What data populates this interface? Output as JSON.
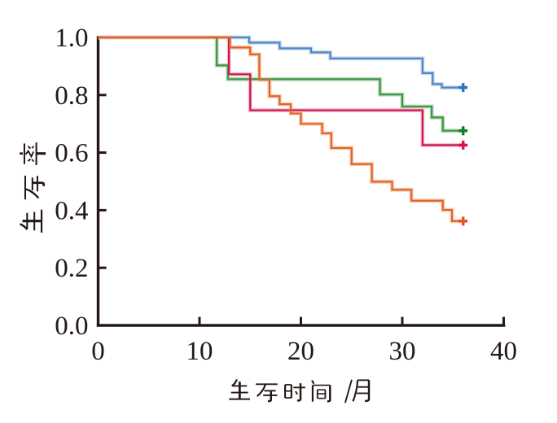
{
  "figure": {
    "kind": "kaplan-meier-survival-plot",
    "background": "#ffffff",
    "axis_color": "#231815",
    "x_axis": {
      "label": "生存时间/月",
      "tick_labels": [
        "0",
        "10",
        "20",
        "30",
        "40"
      ],
      "range": [
        0,
        40
      ]
    },
    "y_axis": {
      "label": "生存率",
      "tick_labels": [
        "1.0",
        "0.8",
        "0.6",
        "0.4",
        "0.2",
        "0.0"
      ],
      "range": [
        0.0,
        1.0
      ]
    }
  },
  "chart_data": {
    "type": "line",
    "subtype": "kaplan-meier-step",
    "title": "",
    "xlabel": "生存时间/月",
    "ylabel": "生存率",
    "xlim": [
      0,
      40
    ],
    "ylim": [
      0.0,
      1.0
    ],
    "x_ticks": [
      0,
      10,
      20,
      30,
      40
    ],
    "y_ticks": [
      1.0,
      0.8,
      0.6,
      0.4,
      0.2,
      0.0
    ],
    "grid": false,
    "legend": "none",
    "series": [
      {
        "name": "curve-blue",
        "color": "#4e86c6",
        "halo_color": "#c9dcf0",
        "censor_color": "#2e73c4",
        "start": [
          0,
          1.0
        ],
        "steps": [
          [
            14.9,
            0.982
          ],
          [
            17.9,
            0.962
          ],
          [
            21.0,
            0.948
          ],
          [
            22.9,
            0.927
          ],
          [
            32.0,
            0.876
          ],
          [
            33.0,
            0.838
          ],
          [
            33.9,
            0.826
          ]
        ],
        "end_time": 36.3,
        "censor_marks": [
          [
            36.0,
            0.826
          ]
        ]
      },
      {
        "name": "curve-green",
        "color": "#3f9447",
        "halo_color": "#bcdcba",
        "censor_color": "#0e7f2e",
        "start": [
          0,
          1.0
        ],
        "steps": [
          [
            11.7,
            0.903
          ],
          [
            12.8,
            0.855
          ],
          [
            27.8,
            0.802
          ],
          [
            30.0,
            0.76
          ],
          [
            32.9,
            0.722
          ],
          [
            34.0,
            0.676
          ]
        ],
        "end_time": 36.3,
        "censor_marks": [
          [
            36.0,
            0.676
          ]
        ]
      },
      {
        "name": "curve-red",
        "color": "#c9174e",
        "halo_color": "#f6bccd",
        "censor_color": "#e0114e",
        "start": [
          0,
          1.0
        ],
        "steps": [
          [
            12.9,
            0.872
          ],
          [
            15.0,
            0.747
          ],
          [
            32.0,
            0.626
          ]
        ],
        "end_time": 36.3,
        "censor_marks": [
          [
            36.0,
            0.626
          ]
        ]
      },
      {
        "name": "curve-orange",
        "color": "#e0622e",
        "halo_color": "#f8cfae",
        "censor_color": "#e55426",
        "start": [
          0,
          1.0
        ],
        "steps": [
          [
            13.0,
            0.965
          ],
          [
            15.0,
            0.941
          ],
          [
            15.9,
            0.853
          ],
          [
            16.9,
            0.796
          ],
          [
            17.9,
            0.768
          ],
          [
            19.0,
            0.736
          ],
          [
            20.0,
            0.7
          ],
          [
            22.1,
            0.667
          ],
          [
            23.0,
            0.616
          ],
          [
            25.0,
            0.56
          ],
          [
            27.0,
            0.499
          ],
          [
            29.0,
            0.471
          ],
          [
            30.9,
            0.433
          ],
          [
            34.0,
            0.401
          ],
          [
            34.9,
            0.362
          ]
        ],
        "end_time": 36.3,
        "censor_marks": [
          [
            36.0,
            0.362
          ]
        ]
      }
    ]
  }
}
